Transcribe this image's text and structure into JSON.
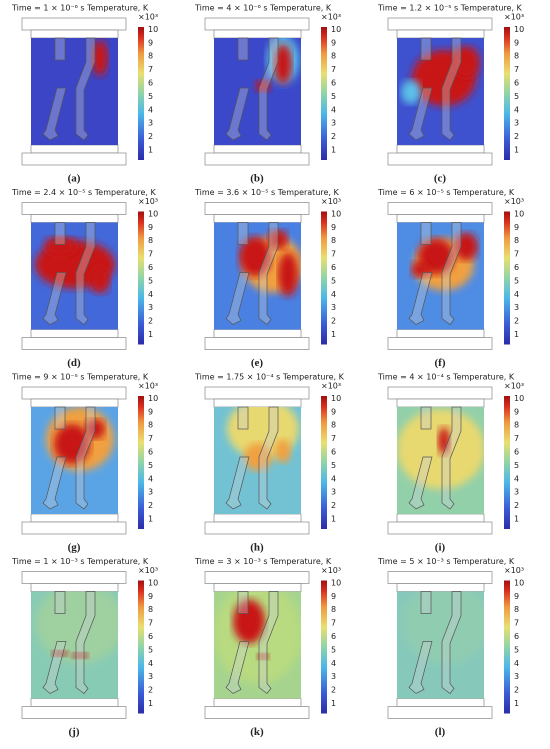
{
  "panels": [
    {
      "title": "Time = 1 × 10⁻⁶ s   Temperature, K",
      "label": "(a)",
      "field_color": "#3b45c6"
    },
    {
      "title": "Time = 4 × 10⁻⁶ s   Temperature, K",
      "label": "(b)",
      "field_color": "#3b48c9"
    },
    {
      "title": "Time = 1.2 × 10⁻⁵ s   Temperature, K",
      "label": "(c)",
      "field_color": "#3e52cf"
    },
    {
      "title": "Time = 2.4 × 10⁻⁵ s   Temperature, K",
      "label": "(d)",
      "field_color": "#4268da"
    },
    {
      "title": "Time = 3.6 × 10⁻⁵ s   Temperature, K",
      "label": "(e)",
      "field_color": "#4a80e2"
    },
    {
      "title": "Time = 6 × 10⁻⁵ s   Temperature, K",
      "label": "(f)",
      "field_color": "#4f8ce4"
    },
    {
      "title": "Time = 9 × 10⁻⁵ s   Temperature, K",
      "label": "(g)",
      "field_color": "#5aa4e6"
    },
    {
      "title": "Time = 1.75 × 10⁻⁴ s   Temperature, K",
      "label": "(h)",
      "field_color": "#72c2d4"
    },
    {
      "title": "Time = 4 × 10⁻⁴ s   Temperature, K",
      "label": "(i)",
      "field_color": "#92d0aa"
    },
    {
      "title": "Time = 1 × 10⁻³ s   Temperature, K",
      "label": "(j)",
      "field_color": "#88cbb4"
    },
    {
      "title": "Time = 3 × 10⁻³ s   Temperature, K",
      "label": "(k)",
      "field_color": "#a6d48e"
    },
    {
      "title": "Time = 5 × 10⁻³ s   Temperature, K",
      "label": "(l)",
      "field_color": "#86c9bb"
    }
  ],
  "colorbar": {
    "unit": "×10³",
    "ticks": [
      1,
      2,
      3,
      4,
      5,
      6,
      7,
      8,
      9,
      10
    ]
  }
}
